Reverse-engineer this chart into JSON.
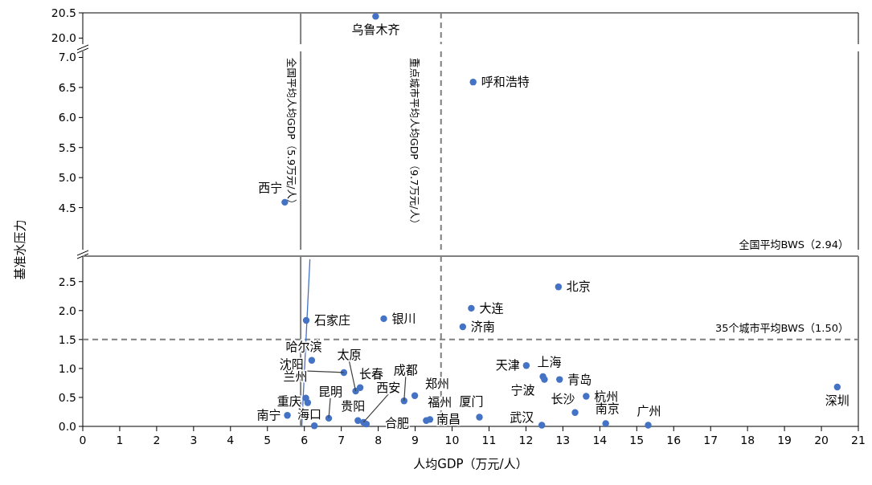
{
  "chart_data": [
    {
      "type": "scatter",
      "xlim": [
        0,
        21
      ],
      "ylim": [
        19.88,
        20.5
      ],
      "yticks": [
        {
          "value": 20,
          "label": "20.0"
        },
        20.5
      ],
      "tick_labels": "y",
      "marker": "circle",
      "series": [
        {
          "color": "#4472c4",
          "x": [
            7.93
          ],
          "values": [
            20.43
          ]
        }
      ],
      "ref_lines": [
        {
          "axis": "x",
          "value": 5.9,
          "color": "#7f7f7f",
          "line_style": "solid"
        },
        {
          "axis": "x",
          "value": 9.7,
          "color": "#7f7f7f",
          "line_style": "dashed"
        }
      ],
      "annotations": [
        {
          "text": "乌鲁木齐",
          "x": 7.93,
          "y": 20.43
        }
      ]
    },
    {
      "type": "scatter",
      "xlim": [
        0,
        21
      ],
      "ylim": [
        3.8,
        7.1
      ],
      "yticks": [
        4.5,
        {
          "value": 5,
          "label": "5.0"
        },
        5.5,
        {
          "value": 6,
          "label": "6.0"
        },
        6.5,
        {
          "value": 7,
          "label": "7.0"
        }
      ],
      "tick_labels": "y",
      "marker": "circle",
      "ylabel": "基准水压力",
      "series": [
        {
          "color": "#4472c4",
          "x": [
            5.47,
            10.57
          ],
          "values": [
            4.59,
            6.59
          ]
        }
      ],
      "ref_lines": [
        {
          "axis": "x",
          "value": 5.9,
          "color": "#7f7f7f",
          "line_style": "solid",
          "label": "全国平均人均GDP（5.9万元/人）"
        },
        {
          "axis": "x",
          "value": 9.7,
          "color": "#7f7f7f",
          "line_style": "dashed",
          "label": "重点城市平均人均GDP（9.7万元/人）"
        }
      ],
      "annotations": [
        {
          "text": "西宁",
          "x": 5.47,
          "y": 4.59
        },
        {
          "text": "呼和浩特",
          "x": 10.57,
          "y": 6.59
        }
      ]
    },
    {
      "type": "scatter",
      "xlim": [
        0,
        21
      ],
      "xticks": [
        0,
        1,
        2,
        3,
        4,
        5,
        6,
        7,
        8,
        9,
        10,
        11,
        12,
        13,
        14,
        15,
        16,
        17,
        18,
        19,
        20,
        21
      ],
      "ylim": [
        0,
        2.94
      ],
      "yticks": [
        {
          "value": 0,
          "label": "0.0"
        },
        0.5,
        {
          "value": 1,
          "label": "1.0"
        },
        1.5,
        {
          "value": 2,
          "label": "2.0"
        },
        2.5
      ],
      "marker": "circle",
      "xlabel": "人均GDP（万元/人）",
      "series": [
        {
          "color": "#4472c4",
          "x": [
            6.05,
            8.15,
            10.52,
            10.29,
            12.88,
            6.2,
            7.07,
            7.39,
            7.51,
            8.7,
            8.99,
            6.04,
            6.09,
            6.66,
            7.45,
            7.6,
            7.68,
            6.27,
            5.54,
            9.3,
            9.4,
            10.74,
            12.01,
            12.46,
            12.5,
            12.91,
            13.63,
            13.33,
            14.16,
            15.31,
            12.43,
            20.43
          ],
          "values": [
            1.83,
            1.86,
            2.04,
            1.72,
            2.41,
            1.14,
            0.93,
            0.61,
            0.67,
            0.44,
            0.53,
            0.49,
            0.41,
            0.14,
            0.1,
            0.07,
            0.04,
            0.01,
            0.19,
            0.1,
            0.12,
            0.16,
            1.05,
            0.86,
            0.81,
            0.81,
            0.52,
            0.24,
            0.05,
            0.02,
            0.02,
            0.68
          ]
        },
        {
          "type": "line",
          "color": "#4472c4",
          "marker": "none",
          "x": [
            5.93,
            6.15
          ],
          "values": [
            0,
            2.88
          ]
        }
      ],
      "ref_lines": [
        {
          "axis": "x",
          "value": 5.9,
          "color": "#7f7f7f",
          "line_style": "solid"
        },
        {
          "axis": "x",
          "value": 9.7,
          "color": "#7f7f7f",
          "line_style": "dashed"
        },
        {
          "axis": "y",
          "value": 2.94,
          "color": "#7f7f7f",
          "line_style": "solid",
          "label": "全国平均BWS（2.94）"
        },
        {
          "axis": "y",
          "value": 1.5,
          "color": "#7f7f7f",
          "line_style": "dashed",
          "label": "35个城市平均BWS（1.50）"
        }
      ],
      "annotations": [
        {
          "text": "石家庄",
          "x": 6.05,
          "y": 1.83
        },
        {
          "text": "银川",
          "x": 8.15,
          "y": 1.86
        },
        {
          "text": "大连",
          "x": 10.52,
          "y": 2.04
        },
        {
          "text": "济南",
          "x": 10.29,
          "y": 1.72
        },
        {
          "text": "北京",
          "x": 12.88,
          "y": 2.41
        },
        {
          "text": "哈尔滨",
          "x": 6.2,
          "y": 1.14
        },
        {
          "text": "沈阳",
          "x": 7.07,
          "y": 0.93
        },
        {
          "text": "太原",
          "x": 7.39,
          "y": 0.61
        },
        {
          "text": "长春",
          "x": 7.51,
          "y": 0.67
        },
        {
          "text": "成都",
          "x": 8.7,
          "y": 0.44
        },
        {
          "text": "郑州",
          "x": 8.99,
          "y": 0.53
        },
        {
          "text": "兰州",
          "x": 6.04,
          "y": 0.49
        },
        {
          "text": "重庆",
          "x": 6.09,
          "y": 0.41
        },
        {
          "text": "昆明",
          "x": 6.66,
          "y": 0.14
        },
        {
          "text": "贵阳",
          "x": 7.45,
          "y": 0.1
        },
        {
          "text": "西安",
          "x": 7.6,
          "y": 0.07
        },
        {
          "text": "合肥",
          "x": 7.68,
          "y": 0.04
        },
        {
          "text": "海口",
          "x": 6.27,
          "y": 0.01
        },
        {
          "text": "南宁",
          "x": 5.54,
          "y": 0.19
        },
        {
          "text": "福州",
          "x": 9.3,
          "y": 0.1
        },
        {
          "text": "南昌",
          "x": 9.4,
          "y": 0.12
        },
        {
          "text": "厦门",
          "x": 10.74,
          "y": 0.16
        },
        {
          "text": "天津",
          "x": 12.01,
          "y": 1.05
        },
        {
          "text": "上海",
          "x": 12.46,
          "y": 0.86
        },
        {
          "text": "宁波",
          "x": 12.5,
          "y": 0.81
        },
        {
          "text": "青岛",
          "x": 12.91,
          "y": 0.81
        },
        {
          "text": "杭州",
          "x": 13.63,
          "y": 0.52
        },
        {
          "text": "长沙",
          "x": 13.33,
          "y": 0.24
        },
        {
          "text": "南京",
          "x": 14.16,
          "y": 0.05
        },
        {
          "text": "广州",
          "x": 15.31,
          "y": 0.02
        },
        {
          "text": "武汉",
          "x": 12.43,
          "y": 0.02
        },
        {
          "text": "深圳",
          "x": 20.43,
          "y": 0.68
        }
      ]
    }
  ]
}
